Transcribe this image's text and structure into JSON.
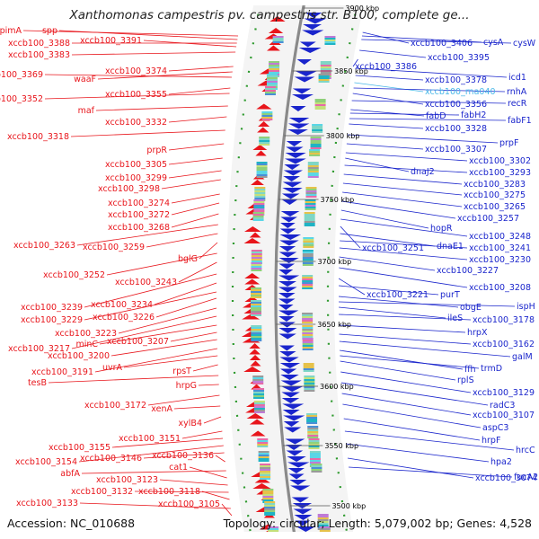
{
  "title": "Xanthomonas campestris pv. campestris str. B100, complete ge...",
  "footer": {
    "accession": "Accession: NC_010688",
    "topology": "Topology: circular; Length: 5,079,002 bp; Genes: 4,528"
  },
  "colors": {
    "reverse_strand": "#e8151b",
    "forward_strand": "#1a25cc",
    "rna_label": "#49b8e8",
    "backbone": "#8a8a8a"
  },
  "ticks": [
    "3900 kbp",
    "3850 kbp",
    "3800 kbp",
    "3750 kbp",
    "3700 kbp",
    "3650 kbp",
    "3600 kbp",
    "3550 kbp",
    "3500 kbp"
  ],
  "left_labels": [
    "pimA",
    "spp",
    "xccb100_3388",
    "xccb100_3391",
    "xccb100_3383",
    "xccb100_3374",
    "waaF",
    "xccb100_3369",
    "xccb100_3355",
    "xccb100_3352",
    "maf",
    "xccb100_3332",
    "xccb100_3318",
    "prpR",
    "xccb100_3305",
    "xccb100_3299",
    "xccb100_3298",
    "xccb100_3274",
    "xccb100_3272",
    "xccb100_3268",
    "xccb100_3263",
    "xccb100_3259",
    "bglG",
    "xccb100_3252",
    "xccb100_3243",
    "xccb100_3239",
    "xccb100_3234",
    "xccb100_3229",
    "xccb100_3226",
    "xccb100_3223",
    "xccb100_3217",
    "minC",
    "xccb100_3207",
    "xccb100_3200",
    "xccb100_3191",
    "uvrA",
    "rpsT",
    "tesB",
    "hrpG",
    "xccb100_3172",
    "xenA",
    "xylB4",
    "xccb100_3151",
    "xccb100_3155",
    "xccb100_3154",
    "xccb100_3146",
    "xccb100_3136",
    "abfA",
    "cat1",
    "xccb100_3123",
    "xccb100_3132",
    "xccb100_3118",
    "xccb100_3133",
    "xccb100_3105"
  ],
  "right_labels": [
    "xccb100_3406",
    "cysA",
    "cysW",
    "xccb100_3395",
    "xccb100_3386",
    "icd1",
    "xccb100_3378",
    "xccb100_rna040",
    "rnhA",
    "xccb100_3356",
    "recR",
    "fabD",
    "fabH2",
    "fabF1",
    "xccb100_3328",
    "prpF",
    "xccb100_3307",
    "xccb100_3302",
    "dnaJ2",
    "xccb100_3293",
    "xccb100_3283",
    "xccb100_3275",
    "xccb100_3265",
    "xccb100_3257",
    "hopR",
    "xccb100_3248",
    "xccb100_3251",
    "dnaE1",
    "xccb100_3241",
    "xccb100_3230",
    "xccb100_3227",
    "xccb100_3208",
    "xccb100_3221",
    "purT",
    "obgE",
    "ispH",
    "ileS",
    "xccb100_3178",
    "hrpX",
    "xccb100_3162",
    "galM",
    "ffh",
    "trmD",
    "rplS",
    "xccb100_3129",
    "radC3",
    "xccb100_3107",
    "aspC3",
    "hrpF",
    "hrcC",
    "hpa2",
    "xccb100_3074",
    "fucA2"
  ]
}
